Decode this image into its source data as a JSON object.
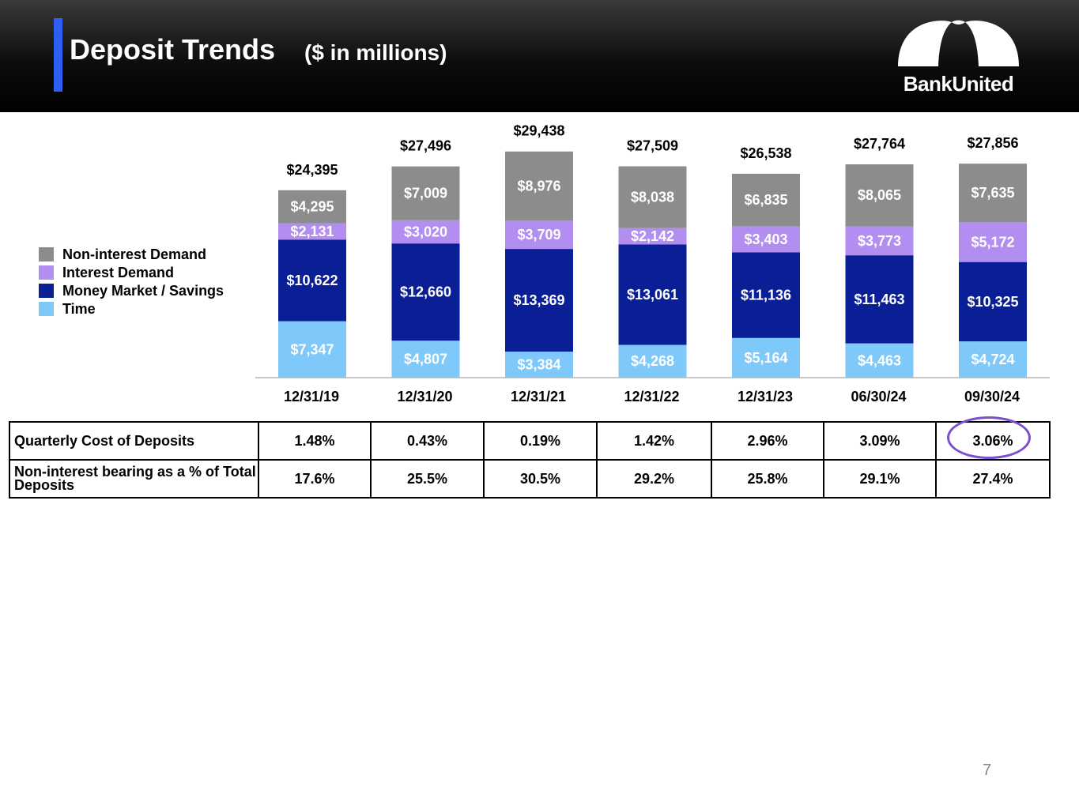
{
  "header": {
    "title": "Deposit Trends",
    "subtitle": "($ in millions)",
    "logo_text": "BankUnited",
    "accent_color": "#2f5ef5"
  },
  "colors": {
    "non_interest_demand": "#8c8c8c",
    "interest_demand": "#b28ef0",
    "money_market_savings": "#0a1f96",
    "time": "#7ec8fa",
    "highlight": "#7b4fcf"
  },
  "legend": [
    {
      "label": "Non-interest Demand"
    },
    {
      "label": "Interest Demand"
    },
    {
      "label": "Money Market / Savings"
    },
    {
      "label": "Time"
    }
  ],
  "chart_data": {
    "type": "bar",
    "stacked": true,
    "title": "Deposit Trends",
    "subtitle": "($ in millions)",
    "categories": [
      "12/31/19",
      "12/31/20",
      "12/31/21",
      "12/31/22",
      "12/31/23",
      "06/30/24",
      "09/30/24"
    ],
    "series": [
      {
        "name": "Time",
        "values": [
          7347,
          4807,
          3384,
          4268,
          5164,
          4463,
          4724
        ],
        "labels": [
          "$7,347",
          "$4,807",
          "$3,384",
          "$4,268",
          "$5,164",
          "$4,463",
          "$4,724"
        ]
      },
      {
        "name": "Money Market / Savings",
        "values": [
          10622,
          12660,
          13369,
          13061,
          11136,
          11463,
          10325
        ],
        "labels": [
          "$10,622",
          "$12,660",
          "$13,369",
          "$13,061",
          "$11,136",
          "$11,463",
          "$10,325"
        ]
      },
      {
        "name": "Interest Demand",
        "values": [
          2131,
          3020,
          3709,
          2142,
          3403,
          3773,
          5172
        ],
        "labels": [
          "$2,131",
          "$3,020",
          "$3,709",
          "$2,142",
          "$3,403",
          "$3,773",
          "$5,172"
        ]
      },
      {
        "name": "Non-interest Demand",
        "values": [
          4295,
          7009,
          8976,
          8038,
          6835,
          8065,
          7635
        ],
        "labels": [
          "$4,295",
          "$7,009",
          "$8,976",
          "$8,038",
          "$6,835",
          "$8,065",
          "$7,635"
        ]
      }
    ],
    "totals": [
      24395,
      27496,
      29438,
      27509,
      26538,
      27764,
      27856
    ],
    "total_labels": [
      "$24,395",
      "$27,496",
      "$29,438",
      "$27,509",
      "$26,538",
      "$27,764",
      "$27,856"
    ],
    "ylim": [
      0,
      31000
    ],
    "legend_position": "left"
  },
  "table": {
    "rows": [
      {
        "label": "Quarterly Cost of Deposits",
        "values": [
          "1.48%",
          "0.43%",
          "0.19%",
          "1.42%",
          "2.96%",
          "3.09%",
          "3.06%"
        ]
      },
      {
        "label": "Non-interest bearing as a % of Total Deposits",
        "values": [
          "17.6%",
          "25.5%",
          "30.5%",
          "29.2%",
          "25.8%",
          "29.1%",
          "27.4%"
        ]
      }
    ]
  },
  "page_number": "7"
}
